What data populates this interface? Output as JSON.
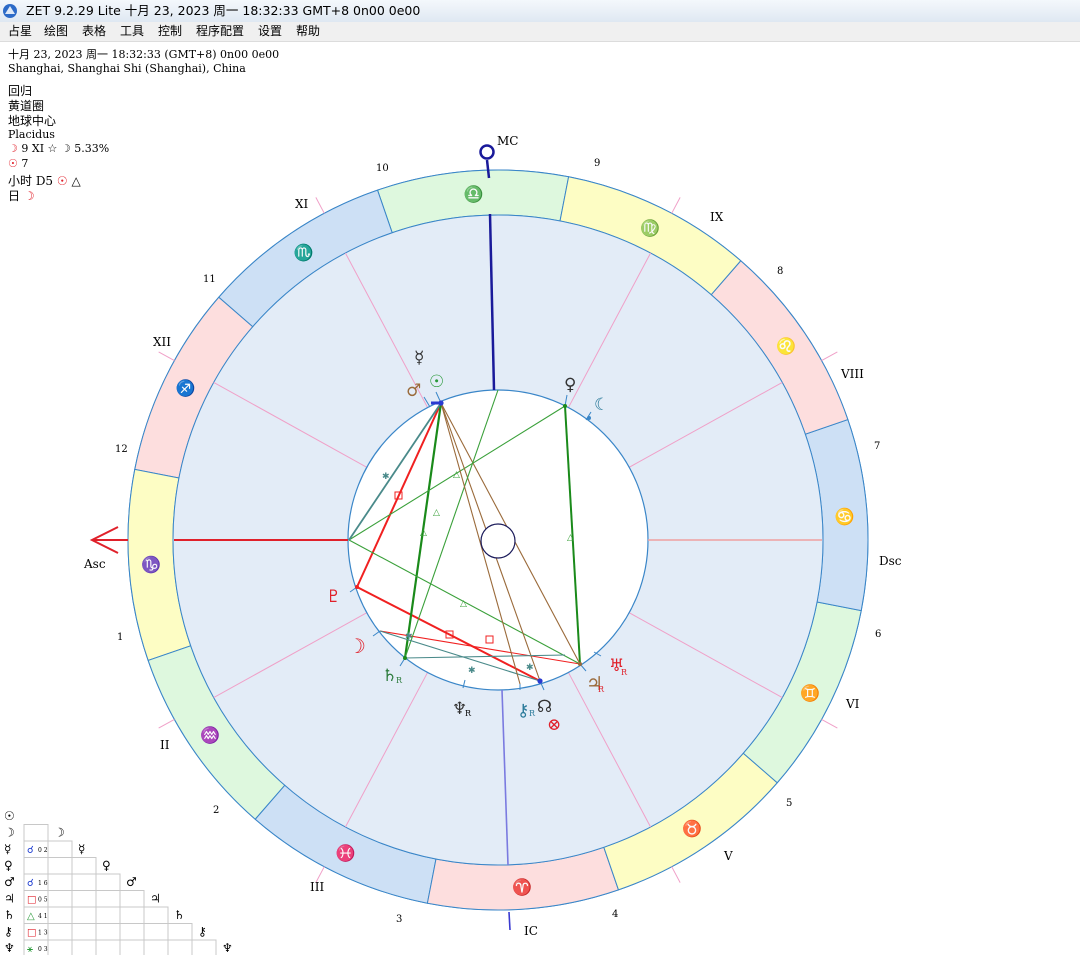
{
  "window": {
    "title": "ZET 9.2.29 Lite  十月 23, 2023  周一  18:32:33 GMT+8 0n00  0e00"
  },
  "menu": [
    "占星",
    "绘图",
    "表格",
    "工具",
    "控制",
    "程序配置",
    "设置",
    "帮助"
  ],
  "info": {
    "datetime": "十月 23, 2023  周一  18:32:33 (GMT+8) 0n00  0e00",
    "location": "Shanghai, Shanghai Shi (Shanghai), China",
    "zodiac": "回归",
    "coords": "黄道圈",
    "center": "地球中心",
    "house_system": "Placidus",
    "moon_line": "9 XI  ☆  ☽ 5.33%",
    "sun_line": "7",
    "hour_line": "小时 D5",
    "day_line": "日"
  },
  "chart": {
    "angle_labels": {
      "mc": "MC",
      "ic": "IC",
      "asc": "Asc",
      "dsc": "Dsc"
    },
    "house_roman": [
      "XI",
      "IX",
      "XII",
      "VIII",
      "II",
      "VI",
      "III",
      "V"
    ],
    "house_numbers": [
      "10",
      "9",
      "11",
      "8",
      "12",
      "7",
      "1",
      "6",
      "2",
      "5",
      "3",
      "4"
    ],
    "signs": [
      {
        "name": "leo",
        "glyph": "♌"
      },
      {
        "name": "virgo",
        "glyph": "♍"
      },
      {
        "name": "libra",
        "glyph": "♎"
      },
      {
        "name": "scorpio",
        "glyph": "♏"
      },
      {
        "name": "sagittarius",
        "glyph": "♐"
      },
      {
        "name": "capricorn",
        "glyph": "♑"
      },
      {
        "name": "aquarius",
        "glyph": "♒"
      },
      {
        "name": "pisces",
        "glyph": "♓"
      },
      {
        "name": "aries",
        "glyph": "♈"
      },
      {
        "name": "taurus",
        "glyph": "♉"
      },
      {
        "name": "gemini",
        "glyph": "♊"
      },
      {
        "name": "cancer",
        "glyph": "♋"
      }
    ],
    "planets": [
      {
        "name": "mercury",
        "glyph": "☿",
        "color": "#333333"
      },
      {
        "name": "sun",
        "glyph": "☉",
        "color": "#2a9a3a"
      },
      {
        "name": "mars",
        "glyph": "♂",
        "color": "#9a6a3a"
      },
      {
        "name": "venus",
        "glyph": "♀",
        "color": "#333333"
      },
      {
        "name": "lilith",
        "glyph": "☾",
        "color": "#2a7a9a"
      },
      {
        "name": "pluto",
        "glyph": "♇",
        "color": "#e0202a"
      },
      {
        "name": "moon",
        "glyph": "☽",
        "color": "#e0202a"
      },
      {
        "name": "saturn",
        "glyph": "♄",
        "color": "#2a7a3a"
      },
      {
        "name": "neptune",
        "glyph": "♆",
        "color": "#333333"
      },
      {
        "name": "chiron",
        "glyph": "⚷",
        "color": "#2a7a9a"
      },
      {
        "name": "node",
        "glyph": "☊",
        "color": "#333333"
      },
      {
        "name": "fortune",
        "glyph": "⊗",
        "color": "#e0202a"
      },
      {
        "name": "jupiter",
        "glyph": "♃",
        "color": "#9a6a3a"
      },
      {
        "name": "uranus",
        "glyph": "♅",
        "color": "#e0202a"
      }
    ],
    "retro_mark": "R"
  },
  "aspect_grid": {
    "rows": [
      {
        "glyph": "☉",
        "cells": []
      },
      {
        "glyph": "☽",
        "cells": []
      },
      {
        "glyph": "☿",
        "cells": [
          {
            "sym": "☌",
            "orb": "0 2",
            "color": "#1a3ad0"
          }
        ]
      },
      {
        "glyph": "♀",
        "cells": []
      },
      {
        "glyph": "♂",
        "cells": [
          {
            "sym": "☌",
            "orb": "1 6",
            "color": "#1a3ad0"
          }
        ]
      },
      {
        "glyph": "♃",
        "cells": [
          {
            "sym": "□",
            "orb": "0 5",
            "color": "#e0202a"
          }
        ]
      },
      {
        "glyph": "♄",
        "cells": [
          {
            "sym": "△",
            "orb": "4 1",
            "color": "#2a9a3a"
          }
        ]
      },
      {
        "glyph": "⚷",
        "cells": [
          {
            "sym": "□",
            "orb": "1 3",
            "color": "#e0202a"
          }
        ]
      },
      {
        "glyph": "♆",
        "cells": [
          {
            "sym": "⚹",
            "orb": "0 3",
            "color": "#2a9a3a"
          }
        ]
      }
    ]
  },
  "colors": {
    "fire": "#fddede",
    "earth": "#fdfdc4",
    "air": "#def8de",
    "water": "#cde0f5",
    "house_bg": "#e3ecf7",
    "ring_stroke": "#3a86c8",
    "aspect_red": "#f02020",
    "aspect_green": "#1a8a1a",
    "aspect_blue": "#2a3ad0",
    "aspect_brown": "#9a6a3a"
  }
}
